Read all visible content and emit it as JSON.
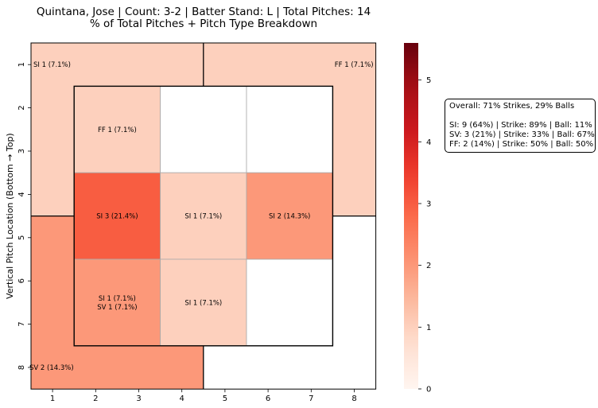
{
  "title_line1": "Quintana, Jose | Count: 3-2 | Batter Stand: L | Total Pitches: 14",
  "title_line2": "% of Total Pitches + Pitch Type Breakdown",
  "info": {
    "overall": "Overall: 71% Strikes, 29% Balls",
    "lines": [
      "SI: 9 (64%) | Strike: 89% | Ball: 11%",
      "SV: 3 (21%) | Strike: 33% | Ball: 67%",
      "FF: 2 (14%) | Strike: 50% | Ball: 50%"
    ]
  },
  "chart_data": {
    "type": "heatmap",
    "ylabel": "Vertical Pitch Location (Bottom → Top)",
    "xlabel": "",
    "x_ticks": [
      "1",
      "2",
      "3",
      "4",
      "5",
      "6",
      "7",
      "8"
    ],
    "y_ticks": [
      "1",
      "2",
      "3",
      "4",
      "5",
      "6",
      "7",
      "8"
    ],
    "colorbar": {
      "min": 0,
      "max": 5.6,
      "ticks": [
        0,
        1,
        2,
        3,
        4,
        5
      ],
      "colormap": "Reds"
    },
    "cells": [
      {
        "col": 1,
        "row": 1,
        "value": 1,
        "label": "SI 1 (7.1%)"
      },
      {
        "col": 8,
        "row": 1,
        "value": 1,
        "label": "FF 1 (7.1%)"
      },
      {
        "col": 2,
        "row": 2,
        "value": 1,
        "label": "FF 1 (7.1%)"
      },
      {
        "col": 2,
        "row": 4,
        "value": 3,
        "label": "SI 3 (21.4%)"
      },
      {
        "col": 4,
        "row": 4,
        "value": 1,
        "label": "SI 1 (7.1%)"
      },
      {
        "col": 6,
        "row": 4,
        "value": 2,
        "label": "SI 2 (14.3%)"
      },
      {
        "col": 2,
        "row": 6,
        "value": 2,
        "label": "SI 1 (7.1%)\nSV 1 (7.1%)"
      },
      {
        "col": 4,
        "row": 6,
        "value": 1,
        "label": "SI 1 (7.1%)"
      },
      {
        "col": 1,
        "row": 8,
        "value": 2,
        "label": "SV 2 (14.3%)"
      }
    ],
    "regions": [
      {
        "name": "outer-top-left",
        "cols": [
          1,
          4
        ],
        "rows": [
          1,
          4
        ],
        "value": 1
      },
      {
        "name": "outer-top-right",
        "cols": [
          5,
          8
        ],
        "rows": [
          1,
          4
        ],
        "value": 1
      },
      {
        "name": "outer-bottom-left",
        "cols": [
          1,
          4
        ],
        "rows": [
          5,
          8
        ],
        "value": 2
      },
      {
        "name": "outer-bottom-right",
        "cols": [
          5,
          8
        ],
        "rows": [
          5,
          8
        ],
        "value": 0
      }
    ],
    "zone": {
      "cols": [
        2,
        7
      ],
      "rows": [
        2,
        7
      ]
    },
    "zone_cells": [
      {
        "cols": [
          2,
          3
        ],
        "rows": [
          2,
          3
        ],
        "value": 1
      },
      {
        "cols": [
          4,
          5
        ],
        "rows": [
          2,
          3
        ],
        "value": 0
      },
      {
        "cols": [
          6,
          7
        ],
        "rows": [
          2,
          3
        ],
        "value": 0
      },
      {
        "cols": [
          2,
          3
        ],
        "rows": [
          4,
          5
        ],
        "value": 3
      },
      {
        "cols": [
          4,
          5
        ],
        "rows": [
          4,
          5
        ],
        "value": 1
      },
      {
        "cols": [
          6,
          7
        ],
        "rows": [
          4,
          5
        ],
        "value": 2
      },
      {
        "cols": [
          2,
          3
        ],
        "rows": [
          6,
          7
        ],
        "value": 2
      },
      {
        "cols": [
          4,
          5
        ],
        "rows": [
          6,
          7
        ],
        "value": 1
      },
      {
        "cols": [
          6,
          7
        ],
        "rows": [
          6,
          7
        ],
        "value": 0
      }
    ]
  }
}
